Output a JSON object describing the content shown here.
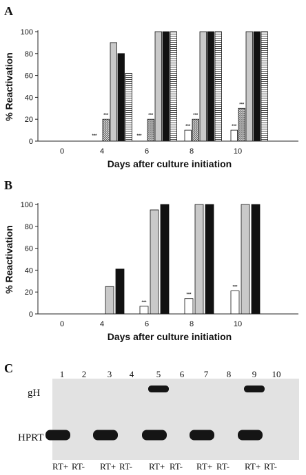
{
  "chart_data": [
    {
      "panel": "A",
      "type": "bar",
      "xlabel": "Days after culture initiation",
      "ylabel": "% Reactivation",
      "ylim": [
        0,
        100
      ],
      "yticks": [
        0,
        20,
        40,
        60,
        80,
        100
      ],
      "categories": [
        "0",
        "4",
        "6",
        "8",
        "10"
      ],
      "legend": "none",
      "series": [
        {
          "fill": "white",
          "values": [
            0,
            0,
            0,
            10,
            10
          ],
          "significance": [
            "",
            "***",
            "***",
            "***",
            "***"
          ]
        },
        {
          "fill": "crosshatch",
          "values": [
            0,
            20,
            20,
            20,
            30
          ],
          "significance": [
            "",
            "***",
            "***",
            "***",
            "***"
          ]
        },
        {
          "fill": "light-gray",
          "values": [
            0,
            90,
            100,
            100,
            100
          ],
          "significance": [
            "",
            "",
            "",
            "",
            ""
          ]
        },
        {
          "fill": "black",
          "values": [
            0,
            80,
            100,
            100,
            100
          ],
          "significance": [
            "",
            "",
            "",
            "",
            ""
          ]
        },
        {
          "fill": "horizontal-stripes",
          "values": [
            0,
            62,
            100,
            100,
            100
          ],
          "significance": [
            "",
            "",
            "",
            "",
            ""
          ]
        }
      ]
    },
    {
      "panel": "B",
      "type": "bar",
      "xlabel": "Days after culture initiation",
      "ylabel": "% Reactivation",
      "ylim": [
        0,
        100
      ],
      "yticks": [
        0,
        20,
        40,
        60,
        80,
        100
      ],
      "categories": [
        "0",
        "4",
        "6",
        "8",
        "10"
      ],
      "legend": "none",
      "series": [
        {
          "fill": "white",
          "values": [
            0,
            0,
            7,
            14,
            21
          ],
          "significance": [
            "",
            "",
            "***",
            "***",
            "***"
          ]
        },
        {
          "fill": "light-gray",
          "values": [
            0,
            25,
            95,
            100,
            100
          ],
          "significance": [
            "",
            "",
            "",
            "",
            ""
          ]
        },
        {
          "fill": "black",
          "values": [
            0,
            41,
            100,
            100,
            100
          ],
          "significance": [
            "",
            "",
            "",
            "",
            ""
          ]
        }
      ]
    }
  ],
  "gel": {
    "panel": "C",
    "lanes": [
      "1",
      "2",
      "3",
      "4",
      "5",
      "6",
      "7",
      "8",
      "9",
      "10"
    ],
    "rows": [
      "gH",
      "HPRT"
    ],
    "rt_labels": [
      "RT+",
      "RT-",
      "RT+",
      "RT-",
      "RT+",
      "RT-",
      "RT+",
      "RT-",
      "RT+",
      "RT-"
    ],
    "bands": {
      "gH": [
        false,
        false,
        false,
        false,
        true,
        false,
        false,
        false,
        true,
        false
      ],
      "HPRT": [
        true,
        false,
        true,
        false,
        true,
        false,
        true,
        false,
        true,
        false
      ]
    }
  }
}
